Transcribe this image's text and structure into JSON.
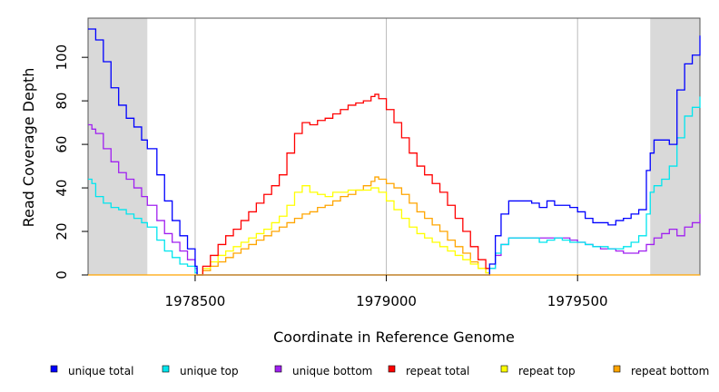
{
  "chart_data": {
    "type": "line",
    "xlabel": "Coordinate in Reference Genome",
    "ylabel": "Read Coverage Depth",
    "xlim": [
      1978220,
      1979820
    ],
    "ylim": [
      0,
      118
    ],
    "x_ticks": [
      1978500,
      1979000,
      1979500
    ],
    "x_tick_labels": [
      "1978500",
      "1979000",
      "1979500"
    ],
    "y_ticks": [
      0,
      20,
      40,
      60,
      80,
      100
    ],
    "y_tick_labels": [
      "0",
      "20",
      "40",
      "60",
      "80",
      "100"
    ],
    "shaded_regions": [
      [
        1978220,
        1978375
      ],
      [
        1979690,
        1979820
      ]
    ],
    "shade_color": "#d9d9d9",
    "series": [
      {
        "name": "unique total",
        "color": "#0000ff",
        "x": [
          1978220,
          1978240,
          1978260,
          1978280,
          1978300,
          1978320,
          1978340,
          1978360,
          1978375,
          1978400,
          1978420,
          1978440,
          1978460,
          1978480,
          1978500,
          1978505,
          1978520,
          1979260,
          1979270,
          1979285,
          1979300,
          1979320,
          1979350,
          1979380,
          1979400,
          1979420,
          1979440,
          1979460,
          1979480,
          1979500,
          1979520,
          1979540,
          1979560,
          1979580,
          1979600,
          1979620,
          1979640,
          1979660,
          1979680,
          1979690,
          1979700,
          1979720,
          1979740,
          1979760,
          1979780,
          1979800,
          1979820
        ],
        "values": [
          113,
          108,
          98,
          86,
          78,
          72,
          68,
          62,
          58,
          46,
          34,
          25,
          18,
          12,
          4,
          0,
          0,
          0,
          5,
          18,
          28,
          34,
          34,
          33,
          31,
          34,
          32,
          32,
          31,
          29,
          26,
          24,
          24,
          23,
          25,
          26,
          28,
          30,
          48,
          56,
          62,
          62,
          60,
          85,
          97,
          101,
          110
        ]
      },
      {
        "name": "unique top",
        "color": "#00e5ee",
        "x": [
          1978220,
          1978230,
          1978240,
          1978260,
          1978280,
          1978300,
          1978320,
          1978340,
          1978360,
          1978375,
          1978400,
          1978420,
          1978440,
          1978460,
          1978480,
          1978500,
          1978505,
          1978520,
          1979260,
          1979270,
          1979285,
          1979300,
          1979320,
          1979350,
          1979380,
          1979400,
          1979420,
          1979440,
          1979460,
          1979480,
          1979500,
          1979520,
          1979540,
          1979560,
          1979580,
          1979600,
          1979620,
          1979640,
          1979660,
          1979680,
          1979690,
          1979700,
          1979720,
          1979740,
          1979760,
          1979780,
          1979800,
          1979820
        ],
        "values": [
          44,
          42,
          36,
          33,
          31,
          30,
          28,
          26,
          24,
          22,
          16,
          11,
          8,
          5,
          4,
          1,
          0,
          0,
          0,
          3,
          10,
          14,
          17,
          17,
          17,
          15,
          16,
          17,
          16,
          15,
          15,
          14,
          13,
          13,
          12,
          12,
          13,
          15,
          18,
          28,
          38,
          41,
          44,
          50,
          63,
          73,
          77,
          82
        ]
      },
      {
        "name": "unique bottom",
        "color": "#a020f0",
        "x": [
          1978220,
          1978230,
          1978240,
          1978260,
          1978280,
          1978300,
          1978320,
          1978340,
          1978360,
          1978375,
          1978400,
          1978420,
          1978440,
          1978460,
          1978480,
          1978500,
          1978505,
          1978520,
          1979260,
          1979270,
          1979285,
          1979300,
          1979320,
          1979350,
          1979380,
          1979400,
          1979420,
          1979440,
          1979460,
          1979480,
          1979500,
          1979520,
          1979540,
          1979560,
          1979580,
          1979600,
          1979620,
          1979640,
          1979660,
          1979680,
          1979700,
          1979720,
          1979740,
          1979760,
          1979780,
          1979800,
          1979820
        ],
        "values": [
          69,
          67,
          65,
          58,
          52,
          47,
          44,
          40,
          36,
          32,
          25,
          19,
          15,
          11,
          7,
          3,
          0,
          0,
          0,
          3,
          9,
          14,
          17,
          17,
          17,
          17,
          17,
          17,
          17,
          16,
          15,
          14,
          13,
          12,
          12,
          11,
          10,
          10,
          11,
          14,
          17,
          19,
          21,
          18,
          22,
          24,
          28
        ]
      },
      {
        "name": "repeat total",
        "color": "#ff0000",
        "x": [
          1978505,
          1978520,
          1978540,
          1978560,
          1978580,
          1978600,
          1978620,
          1978640,
          1978660,
          1978680,
          1978700,
          1978720,
          1978740,
          1978760,
          1978780,
          1978800,
          1978820,
          1978840,
          1978860,
          1978880,
          1978900,
          1978920,
          1978940,
          1978960,
          1978970,
          1978980,
          1979000,
          1979020,
          1979040,
          1979060,
          1979080,
          1979100,
          1979120,
          1979140,
          1979160,
          1979180,
          1979200,
          1979220,
          1979240,
          1979260,
          1979270
        ],
        "values": [
          0,
          4,
          9,
          14,
          18,
          21,
          25,
          29,
          33,
          37,
          41,
          46,
          56,
          65,
          70,
          69,
          71,
          72,
          74,
          76,
          78,
          79,
          80,
          82,
          83,
          81,
          76,
          70,
          63,
          56,
          50,
          46,
          42,
          38,
          32,
          26,
          20,
          13,
          7,
          3,
          0
        ]
      },
      {
        "name": "repeat top",
        "color": "#ffff00",
        "x": [
          1978505,
          1978520,
          1978540,
          1978560,
          1978580,
          1978600,
          1978620,
          1978640,
          1978660,
          1978680,
          1978700,
          1978720,
          1978740,
          1978760,
          1978780,
          1978800,
          1978820,
          1978840,
          1978860,
          1978880,
          1978900,
          1978920,
          1978940,
          1978960,
          1978980,
          1979000,
          1979020,
          1979040,
          1979060,
          1979080,
          1979100,
          1979120,
          1979140,
          1979160,
          1979180,
          1979200,
          1979220,
          1979240,
          1979260,
          1979270
        ],
        "values": [
          0,
          3,
          6,
          9,
          11,
          13,
          15,
          17,
          19,
          21,
          24,
          27,
          32,
          38,
          41,
          38,
          37,
          36,
          38,
          38,
          39,
          39,
          39,
          40,
          38,
          34,
          30,
          26,
          22,
          19,
          17,
          15,
          13,
          11,
          9,
          7,
          5,
          3,
          1,
          0
        ]
      },
      {
        "name": "repeat bottom",
        "color": "#ffa500",
        "x": [
          1978505,
          1978520,
          1978540,
          1978560,
          1978580,
          1978600,
          1978620,
          1978640,
          1978660,
          1978680,
          1978700,
          1978720,
          1978740,
          1978760,
          1978780,
          1978800,
          1978820,
          1978840,
          1978860,
          1978880,
          1978900,
          1978920,
          1978940,
          1978960,
          1978970,
          1978980,
          1979000,
          1979020,
          1979040,
          1979060,
          1979080,
          1979100,
          1979120,
          1979140,
          1979160,
          1979180,
          1979200,
          1979220,
          1979240,
          1979260,
          1979270
        ],
        "values": [
          0,
          2,
          4,
          6,
          8,
          10,
          12,
          14,
          16,
          18,
          20,
          22,
          24,
          26,
          28,
          29,
          31,
          32,
          34,
          36,
          37,
          39,
          41,
          43,
          45,
          44,
          42,
          40,
          37,
          33,
          29,
          26,
          23,
          20,
          16,
          13,
          10,
          6,
          3,
          1,
          0
        ]
      }
    ]
  }
}
